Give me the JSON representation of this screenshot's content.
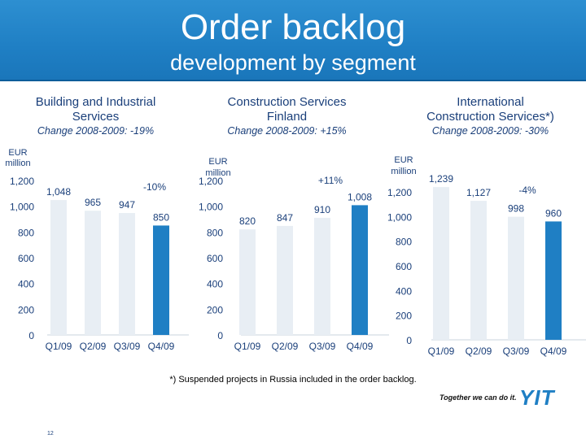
{
  "header": {
    "title": "Order backlog",
    "subtitle": "development by segment"
  },
  "segments": [
    {
      "title_line1": "Building and Industrial",
      "title_line2": "Services",
      "change": "Change 2008-2009: -19%"
    },
    {
      "title_line1": "Construction Services",
      "title_line2": "Finland",
      "change": "Change 2008-2009: +15%"
    },
    {
      "title_line1": "International",
      "title_line2": "Construction Services*)",
      "change": "Change 2008-2009: -30%"
    }
  ],
  "chart_data": [
    {
      "type": "bar",
      "title": "Building and Industrial Services",
      "ylabel": "EUR million",
      "categories": [
        "Q1/09",
        "Q2/09",
        "Q3/09",
        "Q4/09"
      ],
      "values": [
        1048,
        965,
        947,
        850
      ],
      "value_labels": [
        "1,048",
        "965",
        "947",
        "850"
      ],
      "ylim": [
        0,
        1200
      ],
      "yticks": [
        "0",
        "200",
        "400",
        "600",
        "800",
        "1,000",
        "1,200"
      ],
      "annotation": "-10%",
      "bar_colors": [
        "#e8eef4",
        "#e8eef4",
        "#e8eef4",
        "#1f7fc4"
      ]
    },
    {
      "type": "bar",
      "title": "Construction Services Finland",
      "ylabel": "EUR million",
      "categories": [
        "Q1/09",
        "Q2/09",
        "Q3/09",
        "Q4/09"
      ],
      "values": [
        820,
        847,
        910,
        1008
      ],
      "value_labels": [
        "820",
        "847",
        "910",
        "1,008"
      ],
      "ylim": [
        0,
        1200
      ],
      "yticks": [
        "0",
        "200",
        "400",
        "600",
        "800",
        "1,000",
        "1,200"
      ],
      "annotation": "+11%",
      "bar_colors": [
        "#e8eef4",
        "#e8eef4",
        "#e8eef4",
        "#1f7fc4"
      ]
    },
    {
      "type": "bar",
      "title": "International Construction Services*)",
      "ylabel": "EUR million",
      "categories": [
        "Q1/09",
        "Q2/09",
        "Q3/09",
        "Q4/09"
      ],
      "values": [
        1239,
        1127,
        998,
        960
      ],
      "value_labels": [
        "1,239",
        "1,127",
        "998",
        "960"
      ],
      "ylim": [
        0,
        1200
      ],
      "yticks": [
        "0",
        "200",
        "400",
        "600",
        "800",
        "1,000",
        "1,200"
      ],
      "annotation": "-4%",
      "bar_colors": [
        "#e8eef4",
        "#e8eef4",
        "#e8eef4",
        "#1f7fc4"
      ]
    }
  ],
  "footer": {
    "footnote": "*) Suspended projects in Russia included in the order backlog.",
    "slogan": "Together we can do it.",
    "logo": "YIT",
    "page": "12"
  },
  "colors": {
    "banner": "#1f7fc4",
    "text": "#1a3f7a",
    "highlight_bar": "#1f7fc4",
    "bar": "#e8eef4"
  }
}
